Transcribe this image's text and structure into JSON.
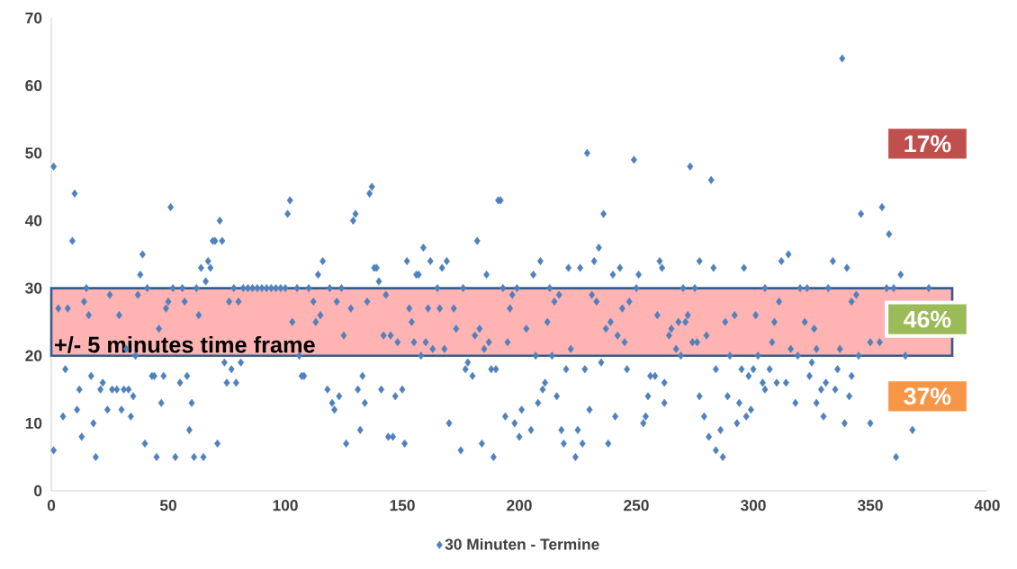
{
  "chart_data": {
    "type": "scatter",
    "series": [
      {
        "name": "30 Minuten - Termine",
        "color": "#4f81bd",
        "x": [
          1,
          1,
          3,
          5,
          6,
          7,
          9,
          10,
          11,
          12,
          13,
          14,
          15,
          16,
          17,
          18,
          19,
          21,
          22,
          24,
          25,
          26,
          28,
          29,
          30,
          31,
          32,
          33,
          34,
          35,
          36,
          37,
          38,
          39,
          40,
          41,
          43,
          44,
          45,
          46,
          47,
          48,
          49,
          50,
          51,
          52,
          53,
          55,
          56,
          57,
          58,
          59,
          60,
          61,
          62,
          63,
          64,
          65,
          66,
          67,
          68,
          69,
          70,
          71,
          72,
          73,
          74,
          75,
          76,
          77,
          78,
          79,
          80,
          81,
          82,
          84,
          86,
          88,
          90,
          92,
          94,
          96,
          98,
          100,
          101,
          102,
          103,
          105,
          106,
          107,
          108,
          110,
          112,
          113,
          114,
          115,
          116,
          118,
          119,
          120,
          121,
          122,
          123,
          124,
          125,
          126,
          128,
          129,
          130,
          131,
          132,
          133,
          134,
          135,
          136,
          137,
          138,
          139,
          140,
          141,
          142,
          143,
          144,
          145,
          146,
          147,
          148,
          150,
          151,
          152,
          153,
          154,
          155,
          156,
          157,
          158,
          159,
          160,
          161,
          162,
          163,
          165,
          166,
          167,
          168,
          169,
          170,
          172,
          173,
          175,
          176,
          177,
          178,
          180,
          181,
          182,
          183,
          184,
          185,
          186,
          187,
          188,
          189,
          190,
          191,
          192,
          193,
          194,
          195,
          196,
          197,
          198,
          199,
          200,
          201,
          203,
          205,
          206,
          207,
          208,
          209,
          210,
          211,
          212,
          213,
          214,
          215,
          216,
          217,
          218,
          219,
          220,
          221,
          222,
          224,
          225,
          226,
          227,
          228,
          229,
          230,
          231,
          232,
          233,
          234,
          235,
          236,
          237,
          238,
          239,
          240,
          241,
          242,
          243,
          244,
          245,
          246,
          247,
          249,
          250,
          251,
          253,
          254,
          255,
          256,
          258,
          259,
          260,
          261,
          262,
          262,
          264,
          265,
          267,
          268,
          269,
          270,
          271,
          272,
          273,
          274,
          275,
          276,
          277,
          277,
          279,
          280,
          281,
          282,
          283,
          284,
          284,
          286,
          287,
          288,
          289,
          290,
          292,
          293,
          294,
          295,
          296,
          297,
          298,
          299,
          300,
          301,
          302,
          304,
          305,
          305,
          307,
          308,
          309,
          310,
          311,
          312,
          314,
          315,
          316,
          318,
          319,
          320,
          322,
          323,
          324,
          325,
          326,
          327,
          327,
          329,
          330,
          331,
          332,
          334,
          335,
          336,
          337,
          338,
          339,
          340,
          341,
          342,
          342,
          344,
          345,
          346,
          350,
          350,
          354,
          355,
          357,
          358,
          360,
          361,
          363,
          365,
          368,
          375
        ],
        "values": [
          48,
          6,
          27,
          11,
          18,
          27,
          37,
          44,
          12,
          15,
          8,
          28,
          30,
          26,
          17,
          10,
          5,
          15,
          16,
          12,
          29,
          15,
          15,
          26,
          12,
          15,
          21,
          15,
          11,
          14,
          20,
          29,
          32,
          35,
          7,
          30,
          17,
          17,
          5,
          24,
          13,
          17,
          27,
          28,
          42,
          30,
          5,
          16,
          30,
          28,
          17,
          9,
          13,
          5,
          30,
          26,
          33,
          5,
          31,
          34,
          33,
          37,
          37,
          7,
          40,
          37,
          19,
          16,
          28,
          18,
          30,
          16,
          28,
          19,
          30,
          30,
          30,
          30,
          30,
          30,
          30,
          30,
          30,
          30,
          41,
          43,
          25,
          30,
          20,
          17,
          17,
          30,
          28,
          25,
          32,
          26,
          34,
          15,
          30,
          13,
          12,
          28,
          14,
          30,
          23,
          7,
          27,
          40,
          41,
          15,
          9,
          17,
          13,
          28,
          44,
          45,
          33,
          33,
          31,
          15,
          23,
          29,
          8,
          23,
          8,
          14,
          22,
          15,
          7,
          34,
          27,
          25,
          22,
          32,
          32,
          20,
          36,
          22,
          27,
          34,
          21,
          30,
          27,
          33,
          21,
          34,
          10,
          27,
          24,
          6,
          30,
          18,
          19,
          17,
          23,
          37,
          24,
          7,
          21,
          32,
          22,
          18,
          5,
          18,
          43,
          43,
          30,
          11,
          22,
          27,
          29,
          10,
          30,
          8,
          12,
          24,
          9,
          32,
          20,
          13,
          34,
          15,
          16,
          25,
          30,
          20,
          28,
          14,
          29,
          9,
          7,
          18,
          33,
          21,
          5,
          9,
          33,
          7,
          18,
          50,
          12,
          29,
          34,
          28,
          36,
          19,
          41,
          24,
          7,
          25,
          32,
          11,
          23,
          33,
          27,
          22,
          18,
          28,
          49,
          30,
          32,
          10,
          11,
          14,
          17,
          17,
          26,
          34,
          33,
          16,
          13,
          23,
          24,
          21,
          25,
          20,
          30,
          25,
          26,
          48,
          22,
          30,
          22,
          34,
          14,
          11,
          23,
          8,
          46,
          33,
          18,
          6,
          9,
          5,
          25,
          14,
          20,
          26,
          10,
          13,
          18,
          33,
          11,
          17,
          12,
          18,
          26,
          20,
          16,
          30,
          15,
          18,
          22,
          25,
          16,
          28,
          34,
          16,
          35,
          21,
          13,
          20,
          30,
          25,
          30,
          17,
          19,
          24,
          21,
          13,
          15,
          11,
          16,
          30,
          34,
          15,
          18,
          21,
          64,
          10,
          33,
          14,
          28,
          17,
          29,
          20,
          41,
          10,
          22,
          22,
          42,
          30,
          38,
          30,
          5,
          32,
          20,
          9,
          30
        ]
      }
    ],
    "xlim": [
      0,
      400
    ],
    "xticks": [
      0,
      50,
      100,
      150,
      200,
      250,
      300,
      350,
      400
    ],
    "ylim": [
      0,
      70
    ],
    "yticks": [
      0,
      10,
      20,
      30,
      40,
      50,
      60,
      70
    ],
    "marker": "diamond",
    "legend": "bottom",
    "grid": false,
    "bands": [
      {
        "axis": "y",
        "from": 20,
        "to": 30,
        "label": "+/- 5 minutes time frame",
        "color": "#ffb3b3"
      }
    ],
    "annotations": [
      "17%",
      "46%",
      "37%"
    ]
  }
}
